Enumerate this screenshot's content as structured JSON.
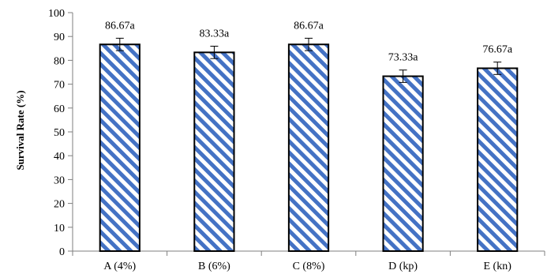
{
  "chart_data": {
    "type": "bar",
    "categories": [
      "A (4%)",
      "B (6%)",
      "C (8%)",
      "D (kp)",
      "E (kn)"
    ],
    "values": [
      86.67,
      83.33,
      86.67,
      73.33,
      76.67
    ],
    "error": [
      2.6,
      2.6,
      2.6,
      2.6,
      2.6
    ],
    "data_labels": [
      "86.67a",
      "83.33a",
      "86.67a",
      "73.33a",
      "76.67a"
    ],
    "title": "",
    "xlabel": "",
    "ylabel": "Survival Rate (%)",
    "ylim": [
      0,
      100
    ],
    "yticks": [
      0,
      10,
      20,
      30,
      40,
      50,
      60,
      70,
      80,
      90,
      100
    ],
    "grid": false,
    "legend": "none",
    "colors": {
      "stripe": "#4472c4",
      "background": "#ffffff",
      "outline": "#000000"
    },
    "fill_pattern": "diagonal-stripes"
  }
}
